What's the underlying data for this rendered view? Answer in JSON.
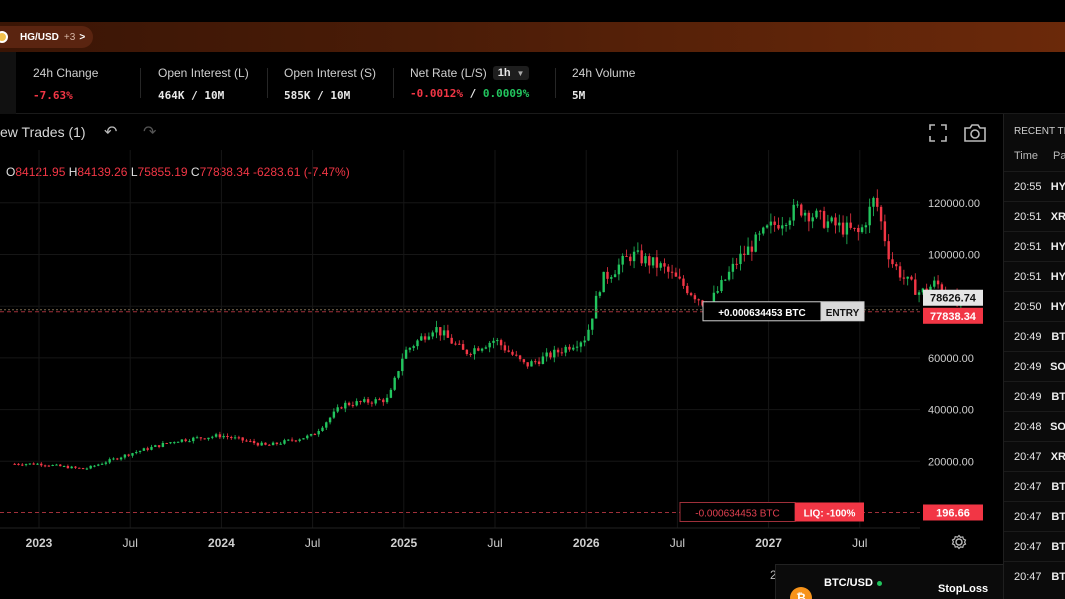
{
  "banner": {
    "pair": "HG/USD",
    "more": "+3",
    "arrow": ">"
  },
  "stats": [
    {
      "label": "24h Change",
      "value": "-7.63%"
    },
    {
      "label": "Open Interest (L)",
      "value": "464K / 10M"
    },
    {
      "label": "Open Interest (S)",
      "value": "585K / 10M"
    },
    {
      "label": "Net Rate (L/S)",
      "timeframe": "1h",
      "value_neg": "-0.0012%",
      "value_sep": " / ",
      "value_pos": "0.0009%"
    },
    {
      "label": "24h Volume",
      "value": "5M"
    }
  ],
  "toolbar": {
    "title": "ew Trades (1)"
  },
  "ohlc": {
    "o_label": "O",
    "o": "84121.95",
    "h_label": "H",
    "h": "84139.26",
    "l_label": "L",
    "l": "75855.19",
    "c_label": "C",
    "c": "77838.34",
    "change": "-6283.61 (-7.47%)"
  },
  "chart_data": {
    "type": "candlestick",
    "y_ticks": [
      "120000.00",
      "100000.00",
      "60000.00",
      "40000.00",
      "20000.00"
    ],
    "x_ticks": [
      "2023",
      "Jul",
      "2024",
      "Jul",
      "2025",
      "Jul",
      "2026",
      "Jul",
      "2027",
      "Jul"
    ],
    "ylim": [
      0,
      135000
    ],
    "price_path": [
      [
        0,
        19000
      ],
      [
        3,
        17000
      ],
      [
        6,
        23000
      ],
      [
        9,
        28000
      ],
      [
        12,
        30000
      ],
      [
        15,
        26000
      ],
      [
        18,
        30000
      ],
      [
        20,
        42000
      ],
      [
        23,
        44000
      ],
      [
        24,
        62000
      ],
      [
        26,
        72000
      ],
      [
        28,
        62000
      ],
      [
        30,
        67000
      ],
      [
        32,
        57000
      ],
      [
        34,
        62000
      ],
      [
        36,
        68000
      ],
      [
        37,
        90000
      ],
      [
        39,
        100000
      ],
      [
        41,
        95000
      ],
      [
        43,
        85000
      ],
      [
        44,
        80000
      ],
      [
        46,
        98000
      ],
      [
        48,
        110000
      ],
      [
        50,
        118000
      ],
      [
        52,
        112000
      ],
      [
        54,
        108000
      ],
      [
        55,
        122000
      ],
      [
        56,
        98000
      ],
      [
        57,
        90000
      ],
      [
        58,
        85000
      ],
      [
        59,
        89000
      ],
      [
        60,
        84000
      ],
      [
        60.7,
        78000
      ]
    ],
    "price_labels": [
      {
        "value": 78626.74,
        "text": "78626.74",
        "style": "light"
      },
      {
        "value": 77838.34,
        "text": "77838.34",
        "style": "red"
      },
      {
        "value": 196.66,
        "text": "196.66",
        "style": "red"
      }
    ],
    "entry": {
      "value": 77838.34,
      "amount": "+0.000634453 BTC",
      "tag": "ENTRY"
    },
    "liquidation": {
      "value": 196.66,
      "amount": "-0.000634453 BTC",
      "tag": "LIQ: -100%"
    },
    "colors": {
      "up": "#22c55e",
      "down": "#f23645",
      "grid": "#161616"
    }
  },
  "panel": {
    "title": "RECENT TI",
    "head": [
      "Time",
      "Pa"
    ],
    "rows": [
      {
        "time": "20:55",
        "pair": "HY"
      },
      {
        "time": "20:51",
        "pair": "XR"
      },
      {
        "time": "20:51",
        "pair": "HY"
      },
      {
        "time": "20:51",
        "pair": "HY"
      },
      {
        "time": "20:50",
        "pair": "HY"
      },
      {
        "time": "20:49",
        "pair": "BT"
      },
      {
        "time": "20:49",
        "pair": "SO"
      },
      {
        "time": "20:49",
        "pair": "BT"
      },
      {
        "time": "20:48",
        "pair": "SO"
      },
      {
        "time": "20:47",
        "pair": "XR"
      },
      {
        "time": "20:47",
        "pair": "BT"
      },
      {
        "time": "20:47",
        "pair": "BT"
      },
      {
        "time": "20:47",
        "pair": "BT"
      },
      {
        "time": "20:47",
        "pair": "BT"
      }
    ]
  },
  "order": {
    "symbol": "BTC/USD",
    "logo": "₿",
    "stop_label": "StopLoss",
    "cut": "2"
  }
}
